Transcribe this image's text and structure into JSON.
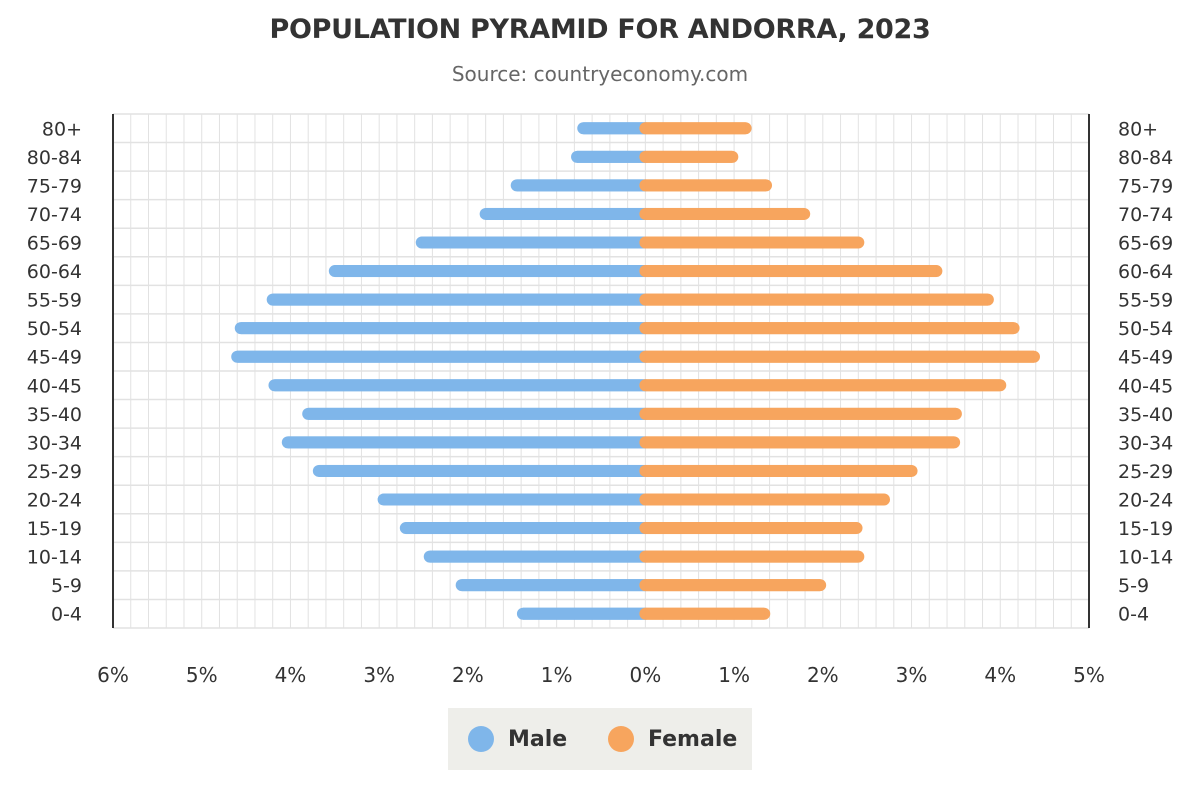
{
  "title": "POPULATION PYRAMID FOR ANDORRA, 2023",
  "subtitle": "Source: countryeconomy.com",
  "colors": {
    "male": "#7fb6ea",
    "female": "#f7a55e",
    "grid": "#e2e2e2",
    "axis": "#333333"
  },
  "legend": {
    "male_label": "Male",
    "female_label": "Female"
  },
  "chart_data": {
    "type": "bar",
    "orientation": "horizontal-diverging",
    "categories": [
      "80+",
      "80-84",
      "75-79",
      "70-74",
      "65-69",
      "60-64",
      "55-59",
      "50-54",
      "45-49",
      "40-45",
      "35-40",
      "30-34",
      "25-29",
      "20-24",
      "15-19",
      "10-14",
      "5-9",
      "0-4"
    ],
    "series": [
      {
        "name": "Male",
        "values": [
          0.7,
          0.77,
          1.45,
          1.8,
          2.52,
          3.5,
          4.2,
          4.56,
          4.6,
          4.18,
          3.8,
          4.03,
          3.68,
          2.95,
          2.7,
          2.43,
          2.07,
          1.38
        ]
      },
      {
        "name": "Female",
        "values": [
          1.13,
          0.98,
          1.36,
          1.79,
          2.4,
          3.28,
          3.86,
          4.15,
          4.38,
          4.0,
          3.5,
          3.48,
          3.0,
          2.69,
          2.38,
          2.4,
          1.97,
          1.34
        ]
      }
    ],
    "x_ticks": [
      "6%",
      "5%",
      "4%",
      "3%",
      "2%",
      "1%",
      "0%",
      "1%",
      "2%",
      "3%",
      "4%",
      "5%"
    ],
    "xlim": [
      -6,
      5
    ],
    "grid": true,
    "legend_position": "bottom"
  }
}
